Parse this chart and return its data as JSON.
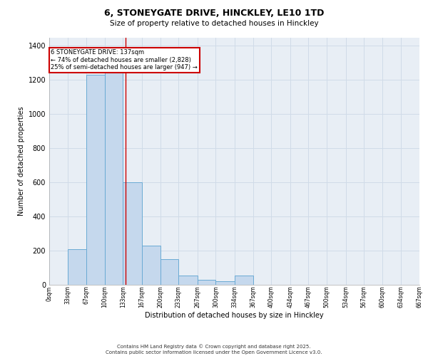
{
  "title_line1": "6, STONEYGATE DRIVE, HINCKLEY, LE10 1TD",
  "title_line2": "Size of property relative to detached houses in Hinckley",
  "xlabel": "Distribution of detached houses by size in Hinckley",
  "ylabel": "Number of detached properties",
  "footer_line1": "Contains HM Land Registry data © Crown copyright and database right 2025.",
  "footer_line2": "Contains public sector information licensed under the Open Government Licence v3.0.",
  "annotation_line1": "6 STONEYGATE DRIVE: 137sqm",
  "annotation_line2": "← 74% of detached houses are smaller (2,828)",
  "annotation_line3": "25% of semi-detached houses are larger (947) →",
  "bar_lefts": [
    0,
    33,
    67,
    100,
    133,
    167,
    200,
    233,
    267,
    300,
    334,
    367,
    400,
    434,
    467,
    500,
    534,
    567,
    600,
    634
  ],
  "bar_widths": [
    33,
    34,
    33,
    33,
    34,
    33,
    33,
    34,
    33,
    34,
    33,
    33,
    34,
    33,
    33,
    34,
    33,
    33,
    34,
    33
  ],
  "bar_heights": [
    0,
    210,
    1230,
    1260,
    600,
    230,
    150,
    55,
    30,
    20,
    55,
    0,
    0,
    0,
    0,
    0,
    0,
    0,
    0,
    0
  ],
  "bar_color": "#c5d8ed",
  "bar_edge_color": "#6aaad4",
  "grid_color": "#d0dbe8",
  "bg_color": "#e8eef5",
  "red_line_x": 137,
  "annotation_box_color": "#cc0000",
  "ylim": [
    0,
    1450
  ],
  "yticks": [
    0,
    200,
    400,
    600,
    800,
    1000,
    1200,
    1400
  ],
  "xlim": [
    0,
    667
  ],
  "xtick_positions": [
    0,
    33,
    67,
    100,
    133,
    167,
    200,
    233,
    267,
    300,
    334,
    367,
    400,
    434,
    467,
    500,
    534,
    567,
    600,
    634,
    667
  ],
  "xtick_labels": [
    "0sqm",
    "33sqm",
    "67sqm",
    "100sqm",
    "133sqm",
    "167sqm",
    "200sqm",
    "233sqm",
    "267sqm",
    "300sqm",
    "334sqm",
    "367sqm",
    "400sqm",
    "434sqm",
    "467sqm",
    "500sqm",
    "534sqm",
    "567sqm",
    "600sqm",
    "634sqm",
    "667sqm"
  ]
}
